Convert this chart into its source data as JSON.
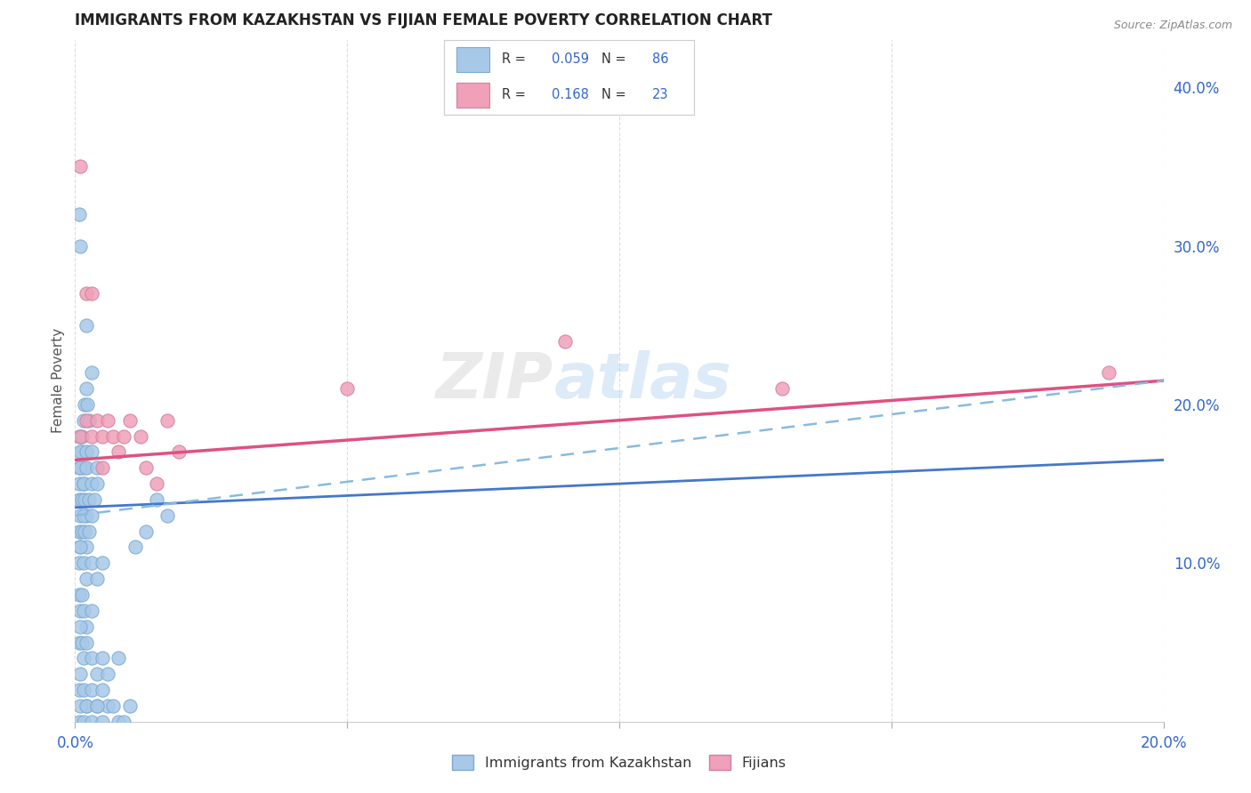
{
  "title": "IMMIGRANTS FROM KAZAKHSTAN VS FIJIAN FEMALE POVERTY CORRELATION CHART",
  "source": "Source: ZipAtlas.com",
  "ylabel": "Female Poverty",
  "xlim": [
    0.0,
    0.2
  ],
  "ylim": [
    0.0,
    0.43
  ],
  "watermark_zip": "ZIP",
  "watermark_atlas": "atlas",
  "kaz_color": "#A8C8E8",
  "kaz_edge_color": "#7AAAD0",
  "fij_color": "#F0A0B8",
  "fij_edge_color": "#D080A0",
  "kaz_line_color": "#4477CC",
  "fij_line_color": "#E05080",
  "dashed_line_color": "#88BBDD",
  "background_color": "#ffffff",
  "grid_color": "#dddddd",
  "legend_text_color": "#3366CC",
  "axis_label_color": "#3366CC",
  "title_color": "#222222",
  "source_color": "#888888",
  "R_kaz": "0.059",
  "N_kaz": "86",
  "R_fij": "0.168",
  "N_fij": "23",
  "kaz_x": [
    0.0008,
    0.0012,
    0.0015,
    0.0018,
    0.002,
    0.0022,
    0.0025,
    0.003,
    0.0008,
    0.001,
    0.0012,
    0.0015,
    0.002,
    0.0008,
    0.001,
    0.0015,
    0.002,
    0.003,
    0.004,
    0.0008,
    0.001,
    0.0012,
    0.0015,
    0.0018,
    0.002,
    0.0025,
    0.003,
    0.0035,
    0.004,
    0.0008,
    0.001,
    0.0012,
    0.0015,
    0.0018,
    0.002,
    0.0025,
    0.003,
    0.0008,
    0.001,
    0.0015,
    0.002,
    0.003,
    0.004,
    0.005,
    0.0008,
    0.001,
    0.0012,
    0.0015,
    0.002,
    0.003,
    0.0008,
    0.001,
    0.0012,
    0.0015,
    0.002,
    0.003,
    0.004,
    0.005,
    0.006,
    0.008,
    0.0008,
    0.001,
    0.0015,
    0.002,
    0.003,
    0.004,
    0.005,
    0.006,
    0.008,
    0.01,
    0.0008,
    0.001,
    0.0015,
    0.002,
    0.003,
    0.004,
    0.005,
    0.007,
    0.009,
    0.011,
    0.013,
    0.015,
    0.017,
    0.0008,
    0.001,
    0.002
  ],
  "kaz_y": [
    0.18,
    0.17,
    0.19,
    0.2,
    0.21,
    0.2,
    0.19,
    0.22,
    0.16,
    0.17,
    0.18,
    0.16,
    0.17,
    0.15,
    0.16,
    0.15,
    0.16,
    0.17,
    0.16,
    0.14,
    0.13,
    0.14,
    0.15,
    0.14,
    0.13,
    0.14,
    0.15,
    0.14,
    0.15,
    0.12,
    0.11,
    0.12,
    0.13,
    0.12,
    0.11,
    0.12,
    0.13,
    0.1,
    0.11,
    0.1,
    0.09,
    0.1,
    0.09,
    0.1,
    0.08,
    0.07,
    0.08,
    0.07,
    0.06,
    0.07,
    0.05,
    0.06,
    0.05,
    0.04,
    0.05,
    0.04,
    0.03,
    0.04,
    0.03,
    0.04,
    0.02,
    0.03,
    0.02,
    0.01,
    0.02,
    0.01,
    0.02,
    0.01,
    0.0,
    0.01,
    0.0,
    0.01,
    0.0,
    0.01,
    0.0,
    0.01,
    0.0,
    0.01,
    0.0,
    0.11,
    0.12,
    0.14,
    0.13,
    0.32,
    0.3,
    0.25
  ],
  "fij_x": [
    0.001,
    0.001,
    0.002,
    0.002,
    0.003,
    0.003,
    0.004,
    0.005,
    0.005,
    0.006,
    0.007,
    0.008,
    0.009,
    0.01,
    0.012,
    0.013,
    0.015,
    0.017,
    0.019,
    0.05,
    0.09,
    0.13,
    0.19
  ],
  "fij_y": [
    0.18,
    0.35,
    0.19,
    0.27,
    0.18,
    0.27,
    0.19,
    0.18,
    0.16,
    0.19,
    0.18,
    0.17,
    0.18,
    0.19,
    0.18,
    0.16,
    0.15,
    0.19,
    0.17,
    0.21,
    0.24,
    0.21,
    0.22
  ]
}
